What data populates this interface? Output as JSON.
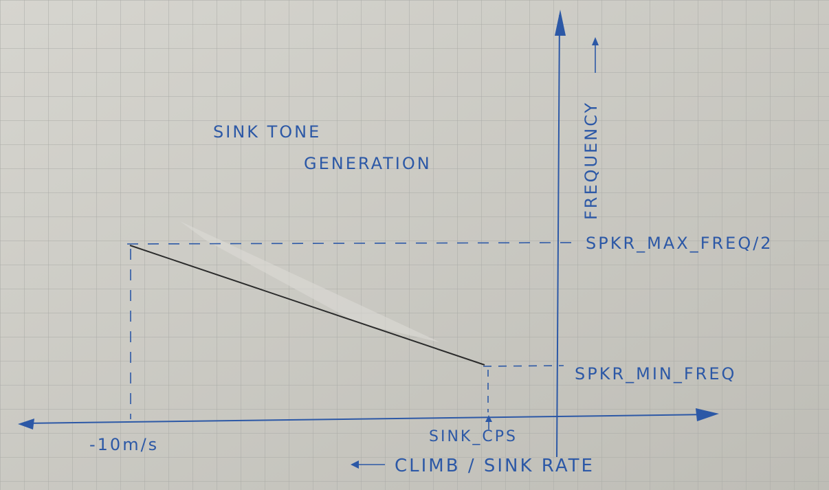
{
  "title": {
    "line1": "SINK TONE",
    "line2": "GENERATION"
  },
  "axes": {
    "y_label": "FREQUENCY",
    "x_label": "CLIMB / SINK RATE"
  },
  "labels": {
    "max_freq": "SPKR_MAX_FREQ/2",
    "min_freq": "SPKR_MIN_FREQ",
    "x_left": "-10m/s",
    "x_right": "SINK_CPS"
  },
  "colors": {
    "paper": "#c9c8c1",
    "grid": "#a9aaa6",
    "ink_blue": "#2c58a6",
    "pencil": "#2b2b2b"
  }
}
